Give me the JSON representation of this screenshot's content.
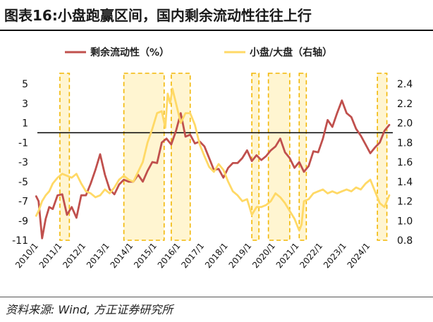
{
  "figure": {
    "title": "图表16:小盘跑赢区间，国内剩余流动性往往上行",
    "source": "资料来源: Wind, 方正证券研究所"
  },
  "chart_data": {
    "type": "line",
    "legend": [
      "剩余流动性（%）",
      "小盘/大盘（右轴）"
    ],
    "x_labels": [
      "2010/1",
      "2011/1",
      "2012/1",
      "2013/1",
      "2014/1",
      "2015/1",
      "2016/1",
      "2017/1",
      "2018/1",
      "2019/1",
      "2020/1",
      "2021/1",
      "2022/1",
      "2023/1",
      "2024/1"
    ],
    "left_axis": {
      "ylim": [
        -11,
        5
      ],
      "ticks": [
        5,
        3,
        1,
        -1,
        -3,
        -5,
        -7,
        -9,
        -11
      ]
    },
    "right_axis": {
      "ylim": [
        0.8,
        2.4
      ],
      "ticks": [
        "2.4",
        "2.2",
        "2.0",
        "1.8",
        "1.6",
        "1.4",
        "1.2",
        "1.0",
        "0.8"
      ]
    },
    "zero_line": 0,
    "shaded_periods": [
      {
        "start": 2010.9,
        "end": 2011.3
      },
      {
        "start": 2013.6,
        "end": 2015.3
      },
      {
        "start": 2015.6,
        "end": 2016.4
      },
      {
        "start": 2019.0,
        "end": 2019.3
      },
      {
        "start": 2019.7,
        "end": 2020.6
      },
      {
        "start": 2021.0,
        "end": 2021.3
      },
      {
        "start": 2024.3,
        "end": 2024.7
      }
    ],
    "series": [
      {
        "name": "剩余流动性（%）",
        "axis": "left",
        "color": "#c0504d",
        "x": [
          2009.9,
          2010.0,
          2010.15,
          2010.3,
          2010.45,
          2010.6,
          2010.8,
          2011.0,
          2011.2,
          2011.4,
          2011.6,
          2011.8,
          2012.0,
          2012.2,
          2012.4,
          2012.6,
          2012.8,
          2013.0,
          2013.2,
          2013.4,
          2013.6,
          2013.8,
          2014.0,
          2014.2,
          2014.4,
          2014.6,
          2014.8,
          2015.0,
          2015.2,
          2015.4,
          2015.6,
          2015.8,
          2016.0,
          2016.2,
          2016.4,
          2016.6,
          2016.8,
          2017.0,
          2017.2,
          2017.4,
          2017.6,
          2017.8,
          2018.0,
          2018.2,
          2018.4,
          2018.6,
          2018.8,
          2019.0,
          2019.2,
          2019.4,
          2019.6,
          2019.8,
          2020.0,
          2020.2,
          2020.4,
          2020.6,
          2020.8,
          2021.0,
          2021.2,
          2021.4,
          2021.6,
          2021.8,
          2022.0,
          2022.2,
          2022.4,
          2022.6,
          2022.8,
          2023.0,
          2023.2,
          2023.4,
          2023.6,
          2023.8,
          2024.0,
          2024.2,
          2024.4,
          2024.6,
          2024.8
        ],
        "values": [
          -6.5,
          -7.0,
          -10.8,
          -8.8,
          -7.6,
          -7.8,
          -6.4,
          -6.3,
          -8.4,
          -7.6,
          -8.7,
          -6.4,
          -6.4,
          -5.2,
          -3.8,
          -2.2,
          -4.3,
          -5.8,
          -6.3,
          -5.3,
          -4.8,
          -5.0,
          -5.0,
          -4.3,
          -5.0,
          -3.9,
          -3.0,
          -3.1,
          -1.0,
          -0.6,
          -1.2,
          0.2,
          2.0,
          -0.4,
          -0.2,
          -1.1,
          -0.9,
          -1.4,
          -2.6,
          -3.8,
          -3.7,
          -4.6,
          -3.6,
          -3.1,
          -3.1,
          -2.6,
          -1.8,
          -2.9,
          -2.3,
          -2.8,
          -2.4,
          -1.8,
          -1.4,
          -0.6,
          -2.0,
          -2.6,
          -3.6,
          -3.0,
          -4.0,
          -3.4,
          -1.9,
          -2.0,
          -0.6,
          1.3,
          0.6,
          2.0,
          3.3,
          2.0,
          1.6,
          0.4,
          -0.3,
          -1.2,
          -2.1,
          -1.5,
          -1.0,
          0.2,
          0.8
        ]
      },
      {
        "name": "小盘/大盘（右轴）",
        "axis": "right",
        "color": "#ffd966",
        "x": [
          2009.9,
          2010.0,
          2010.15,
          2010.3,
          2010.45,
          2010.6,
          2010.8,
          2011.0,
          2011.2,
          2011.4,
          2011.6,
          2011.8,
          2012.0,
          2012.2,
          2012.4,
          2012.6,
          2012.8,
          2013.0,
          2013.2,
          2013.4,
          2013.6,
          2013.8,
          2014.0,
          2014.2,
          2014.4,
          2014.6,
          2014.8,
          2015.0,
          2015.2,
          2015.35,
          2015.45,
          2015.55,
          2015.65,
          2015.8,
          2016.0,
          2016.2,
          2016.4,
          2016.6,
          2016.8,
          2017.0,
          2017.2,
          2017.4,
          2017.6,
          2017.8,
          2018.0,
          2018.2,
          2018.4,
          2018.6,
          2018.8,
          2019.0,
          2019.2,
          2019.4,
          2019.6,
          2019.8,
          2020.0,
          2020.2,
          2020.4,
          2020.6,
          2020.8,
          2021.0,
          2021.1,
          2021.2,
          2021.4,
          2021.6,
          2021.8,
          2022.0,
          2022.2,
          2022.4,
          2022.6,
          2022.8,
          2023.0,
          2023.2,
          2023.4,
          2023.6,
          2023.8,
          2024.0,
          2024.2,
          2024.4,
          2024.6,
          2024.8
        ],
        "values": [
          1.05,
          1.1,
          1.2,
          1.26,
          1.3,
          1.38,
          1.44,
          1.48,
          1.46,
          1.44,
          1.48,
          1.38,
          1.3,
          1.28,
          1.24,
          1.26,
          1.32,
          1.28,
          1.34,
          1.42,
          1.46,
          1.42,
          1.4,
          1.5,
          1.6,
          1.8,
          1.94,
          2.1,
          2.12,
          1.95,
          2.3,
          2.2,
          2.35,
          2.2,
          2.0,
          2.1,
          2.1,
          1.98,
          1.78,
          1.66,
          1.55,
          1.5,
          1.58,
          1.52,
          1.4,
          1.3,
          1.26,
          1.2,
          1.22,
          1.06,
          1.14,
          1.14,
          1.16,
          1.2,
          1.28,
          1.24,
          1.18,
          1.1,
          1.02,
          0.9,
          0.96,
          1.2,
          1.22,
          1.28,
          1.3,
          1.32,
          1.28,
          1.3,
          1.28,
          1.3,
          1.32,
          1.3,
          1.34,
          1.32,
          1.38,
          1.42,
          1.3,
          1.18,
          1.14,
          1.26
        ]
      }
    ]
  }
}
